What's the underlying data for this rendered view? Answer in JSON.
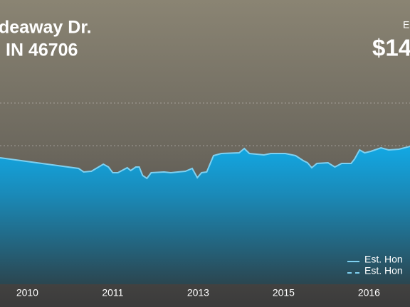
{
  "chart_data": {
    "type": "area",
    "title": "deaway Dr.",
    "subtitle": "IN 46706",
    "annotations": [
      "E",
      "$14"
    ],
    "x": [
      -0.32,
      0.6,
      0.66,
      0.75,
      0.89,
      0.95,
      1.0,
      1.06,
      1.17,
      1.21,
      1.27,
      1.31,
      1.35,
      1.4,
      1.45,
      1.6,
      1.68,
      1.85,
      1.93,
      1.99,
      2.04,
      2.1,
      2.18,
      2.27,
      2.48,
      2.54,
      2.6,
      2.77,
      2.85,
      3.02,
      3.14,
      3.23,
      3.28,
      3.33,
      3.39,
      3.52,
      3.6,
      3.68,
      3.79,
      3.83,
      3.89,
      3.95,
      4.02,
      4.14,
      4.23,
      4.35,
      4.48
    ],
    "series": [
      {
        "name": "Est. Hon",
        "color": "#7fd0f0",
        "values": [
          178,
          163,
          158,
          159,
          169,
          165,
          157,
          157,
          164,
          160,
          165,
          165,
          153,
          149,
          157,
          158,
          157,
          159,
          163,
          150,
          157,
          158,
          181,
          184,
          185,
          191,
          184,
          182,
          184,
          184,
          181,
          174,
          171,
          164,
          170,
          171,
          165,
          170,
          170,
          176,
          189,
          185,
          187,
          192,
          189,
          190,
          194
        ]
      }
    ],
    "legend_entries": [
      {
        "label": "Est. Hon",
        "style": "solid"
      },
      {
        "label": "Est. Hon",
        "style": "dashed"
      }
    ],
    "xlim": [
      -0.32,
      4.48
    ],
    "xticks": [
      {
        "value": 0,
        "label": "2010"
      },
      {
        "value": 1,
        "label": "2011"
      },
      {
        "value": 2,
        "label": "2013"
      },
      {
        "value": 3,
        "label": "2015"
      },
      {
        "value": 4,
        "label": "2016"
      }
    ],
    "ylim": [
      0,
      400
    ]
  }
}
